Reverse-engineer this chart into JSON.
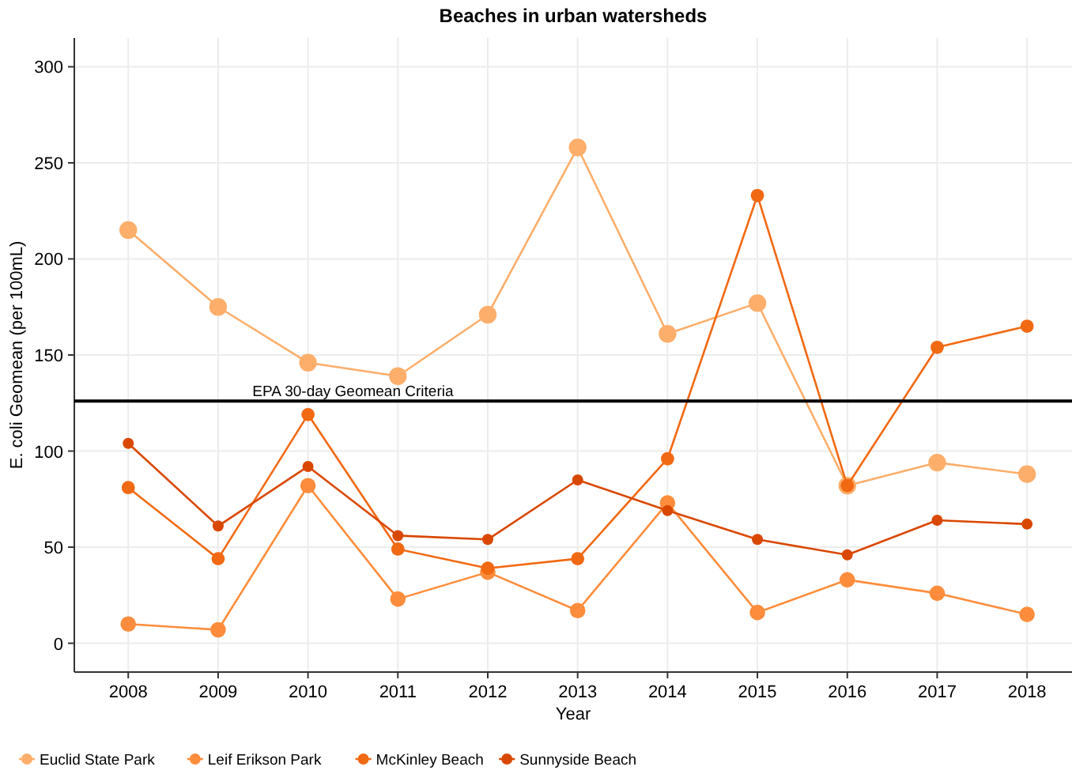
{
  "chart_data": {
    "type": "line",
    "title": "Beaches in urban watersheds",
    "xlabel": "Year",
    "ylabel": "E. coli Geomean (per 100mL)",
    "x": [
      2008,
      2009,
      2010,
      2011,
      2012,
      2013,
      2014,
      2015,
      2016,
      2017,
      2018
    ],
    "series": [
      {
        "name": "Euclid State Park",
        "color": "#fdae6b",
        "values": [
          215,
          175,
          146,
          139,
          171,
          258,
          161,
          177,
          82,
          94,
          88
        ]
      },
      {
        "name": "Leif Erikson Park",
        "color": "#fd8d3c",
        "values": [
          10,
          7,
          82,
          23,
          37,
          17,
          73,
          16,
          33,
          26,
          15
        ]
      },
      {
        "name": "McKinley Beach",
        "color": "#f16913",
        "values": [
          81,
          44,
          119,
          49,
          39,
          44,
          96,
          233,
          82,
          154,
          165
        ]
      },
      {
        "name": "Sunnyside Beach",
        "color": "#d94801",
        "values": [
          104,
          61,
          92,
          56,
          54,
          85,
          69,
          54,
          46,
          64,
          62
        ]
      }
    ],
    "xlim": [
      2007.4,
      2018.5
    ],
    "xticks": [
      2008,
      2009,
      2010,
      2011,
      2012,
      2013,
      2014,
      2015,
      2016,
      2017,
      2018
    ],
    "ylim": [
      -15,
      315
    ],
    "yticks": [
      0,
      50,
      100,
      150,
      200,
      250,
      300
    ],
    "ref_lines": [
      {
        "axis": "y",
        "value": 126,
        "label": "EPA 30-day Geomean Criteria",
        "color": "#000000"
      }
    ],
    "grid": true,
    "legend": "bottom left",
    "marker": "circle",
    "line_style": "solid"
  }
}
